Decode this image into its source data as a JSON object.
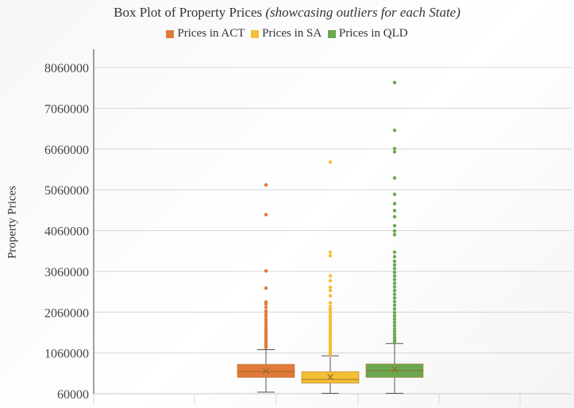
{
  "chart_data": {
    "type": "box",
    "title": "Box Plot of Property Prices",
    "subtitle": "(showcasing outliers for each State)",
    "xlabel": "",
    "ylabel": "Property Prices",
    "ylim": [
      60000,
      8060000
    ],
    "yticks": [
      "8060000",
      "7060000",
      "6060000",
      "5060000",
      "4060000",
      "3060000",
      "2060000",
      "1060000",
      "60000"
    ],
    "grid": true,
    "legend_position": "top",
    "series": [
      {
        "name": "Prices in ACT",
        "color": "#e07b39",
        "min": 100000,
        "q1": 460000,
        "median": 600000,
        "q3": 780000,
        "max": 1140000,
        "mean": 620000,
        "outliers": [
          5180000,
          4450000,
          3070000,
          2650000,
          2310000,
          2260000,
          2180000,
          2090000,
          2020000,
          1960000,
          1890000,
          1830000,
          1770000,
          1710000,
          1660000,
          1610000,
          1560000,
          1510000,
          1460000,
          1410000,
          1360000,
          1310000,
          1270000,
          1230000,
          1190000
        ]
      },
      {
        "name": "Prices in SA",
        "color": "#f2bf36",
        "min": 70000,
        "q1": 320000,
        "median": 410000,
        "q3": 600000,
        "max": 990000,
        "mean": 470000,
        "outliers": [
          5740000,
          3530000,
          3440000,
          2950000,
          2830000,
          2670000,
          2590000,
          2460000,
          2290000,
          2200000,
          2130000,
          2070000,
          2020000,
          1960000,
          1900000,
          1840000,
          1780000,
          1720000,
          1660000,
          1600000,
          1550000,
          1500000,
          1450000,
          1400000,
          1350000,
          1300000,
          1250000,
          1200000,
          1150000,
          1100000,
          1050000,
          1020000
        ]
      },
      {
        "name": "Prices in QLD",
        "color": "#6aa84f",
        "min": 70000,
        "q1": 460000,
        "median": 630000,
        "q3": 790000,
        "max": 1290000,
        "mean": 660000,
        "outliers": [
          7690000,
          6520000,
          6070000,
          5990000,
          5350000,
          4950000,
          4720000,
          4550000,
          4400000,
          4180000,
          4050000,
          3960000,
          3530000,
          3420000,
          3310000,
          3220000,
          3130000,
          3040000,
          2950000,
          2860000,
          2770000,
          2680000,
          2590000,
          2500000,
          2410000,
          2320000,
          2230000,
          2140000,
          2050000,
          1970000,
          1890000,
          1810000,
          1730000,
          1650000,
          1580000,
          1510000,
          1440000,
          1380000,
          1330000
        ]
      }
    ]
  }
}
